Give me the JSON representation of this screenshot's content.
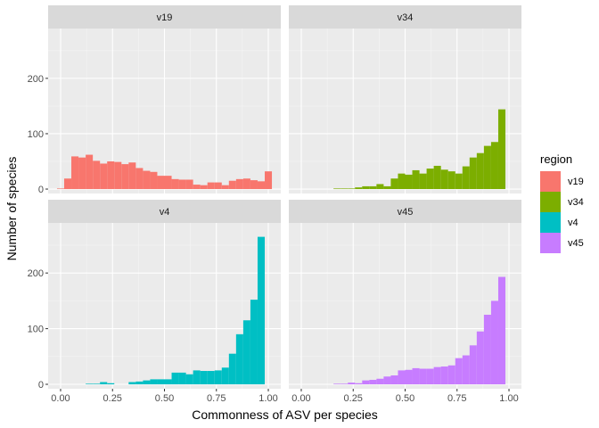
{
  "chart_data": {
    "type": "bar",
    "xlabel": "Commonness of ASV per species",
    "ylabel": "Number of species",
    "xlim": [
      -0.06,
      1.06
    ],
    "ylim": [
      -8,
      290
    ],
    "x_ticks": [
      "0.00",
      "0.25",
      "0.50",
      "0.75",
      "1.00"
    ],
    "x_tick_values": [
      0.0,
      0.25,
      0.5,
      0.75,
      1.0
    ],
    "y_ticks": [
      "0",
      "100",
      "200"
    ],
    "y_tick_values": [
      0,
      100,
      200
    ],
    "bin_starts": [
      -0.0172,
      0.0172,
      0.0517,
      0.0862,
      0.1207,
      0.1552,
      0.1897,
      0.2241,
      0.2586,
      0.2931,
      0.3276,
      0.3621,
      0.3966,
      0.431,
      0.4655,
      0.5,
      0.5345,
      0.569,
      0.6034,
      0.6379,
      0.6724,
      0.7069,
      0.7414,
      0.7759,
      0.8103,
      0.8448,
      0.8793,
      0.9138,
      0.9483,
      0.9828
    ],
    "bin_width": 0.0345,
    "legend_title": "region",
    "legend_position": "right",
    "series": [
      {
        "name": "v19",
        "color": "#F8766D",
        "values": [
          1,
          19,
          59,
          57,
          62,
          51,
          46,
          50,
          49,
          45,
          48,
          38,
          33,
          31,
          24,
          24,
          18,
          17,
          17,
          8,
          7,
          12,
          12,
          7,
          15,
          18,
          19,
          16,
          14,
          32
        ]
      },
      {
        "name": "v34",
        "color": "#7CAE00",
        "values": [
          0,
          0,
          0,
          0,
          0,
          1,
          1,
          1,
          3,
          5,
          5,
          9,
          5,
          19,
          28,
          26,
          34,
          28,
          37,
          42,
          35,
          32,
          28,
          41,
          57,
          65,
          78,
          85,
          144,
          0
        ]
      },
      {
        "name": "v4",
        "color": "#00BFC4",
        "values": [
          0,
          0,
          0,
          0,
          1,
          1,
          4,
          2,
          0,
          0,
          4,
          5,
          7,
          9,
          9,
          9,
          21,
          21,
          18,
          25,
          24,
          24,
          25,
          30,
          55,
          90,
          115,
          152,
          265,
          0
        ]
      },
      {
        "name": "v45",
        "color": "#C77CFF",
        "values": [
          0,
          0,
          0,
          0,
          0,
          1,
          1,
          3,
          2,
          7,
          8,
          10,
          14,
          16,
          25,
          26,
          29,
          28,
          28,
          31,
          32,
          34,
          47,
          52,
          70,
          95,
          125,
          150,
          193,
          0
        ]
      }
    ]
  }
}
